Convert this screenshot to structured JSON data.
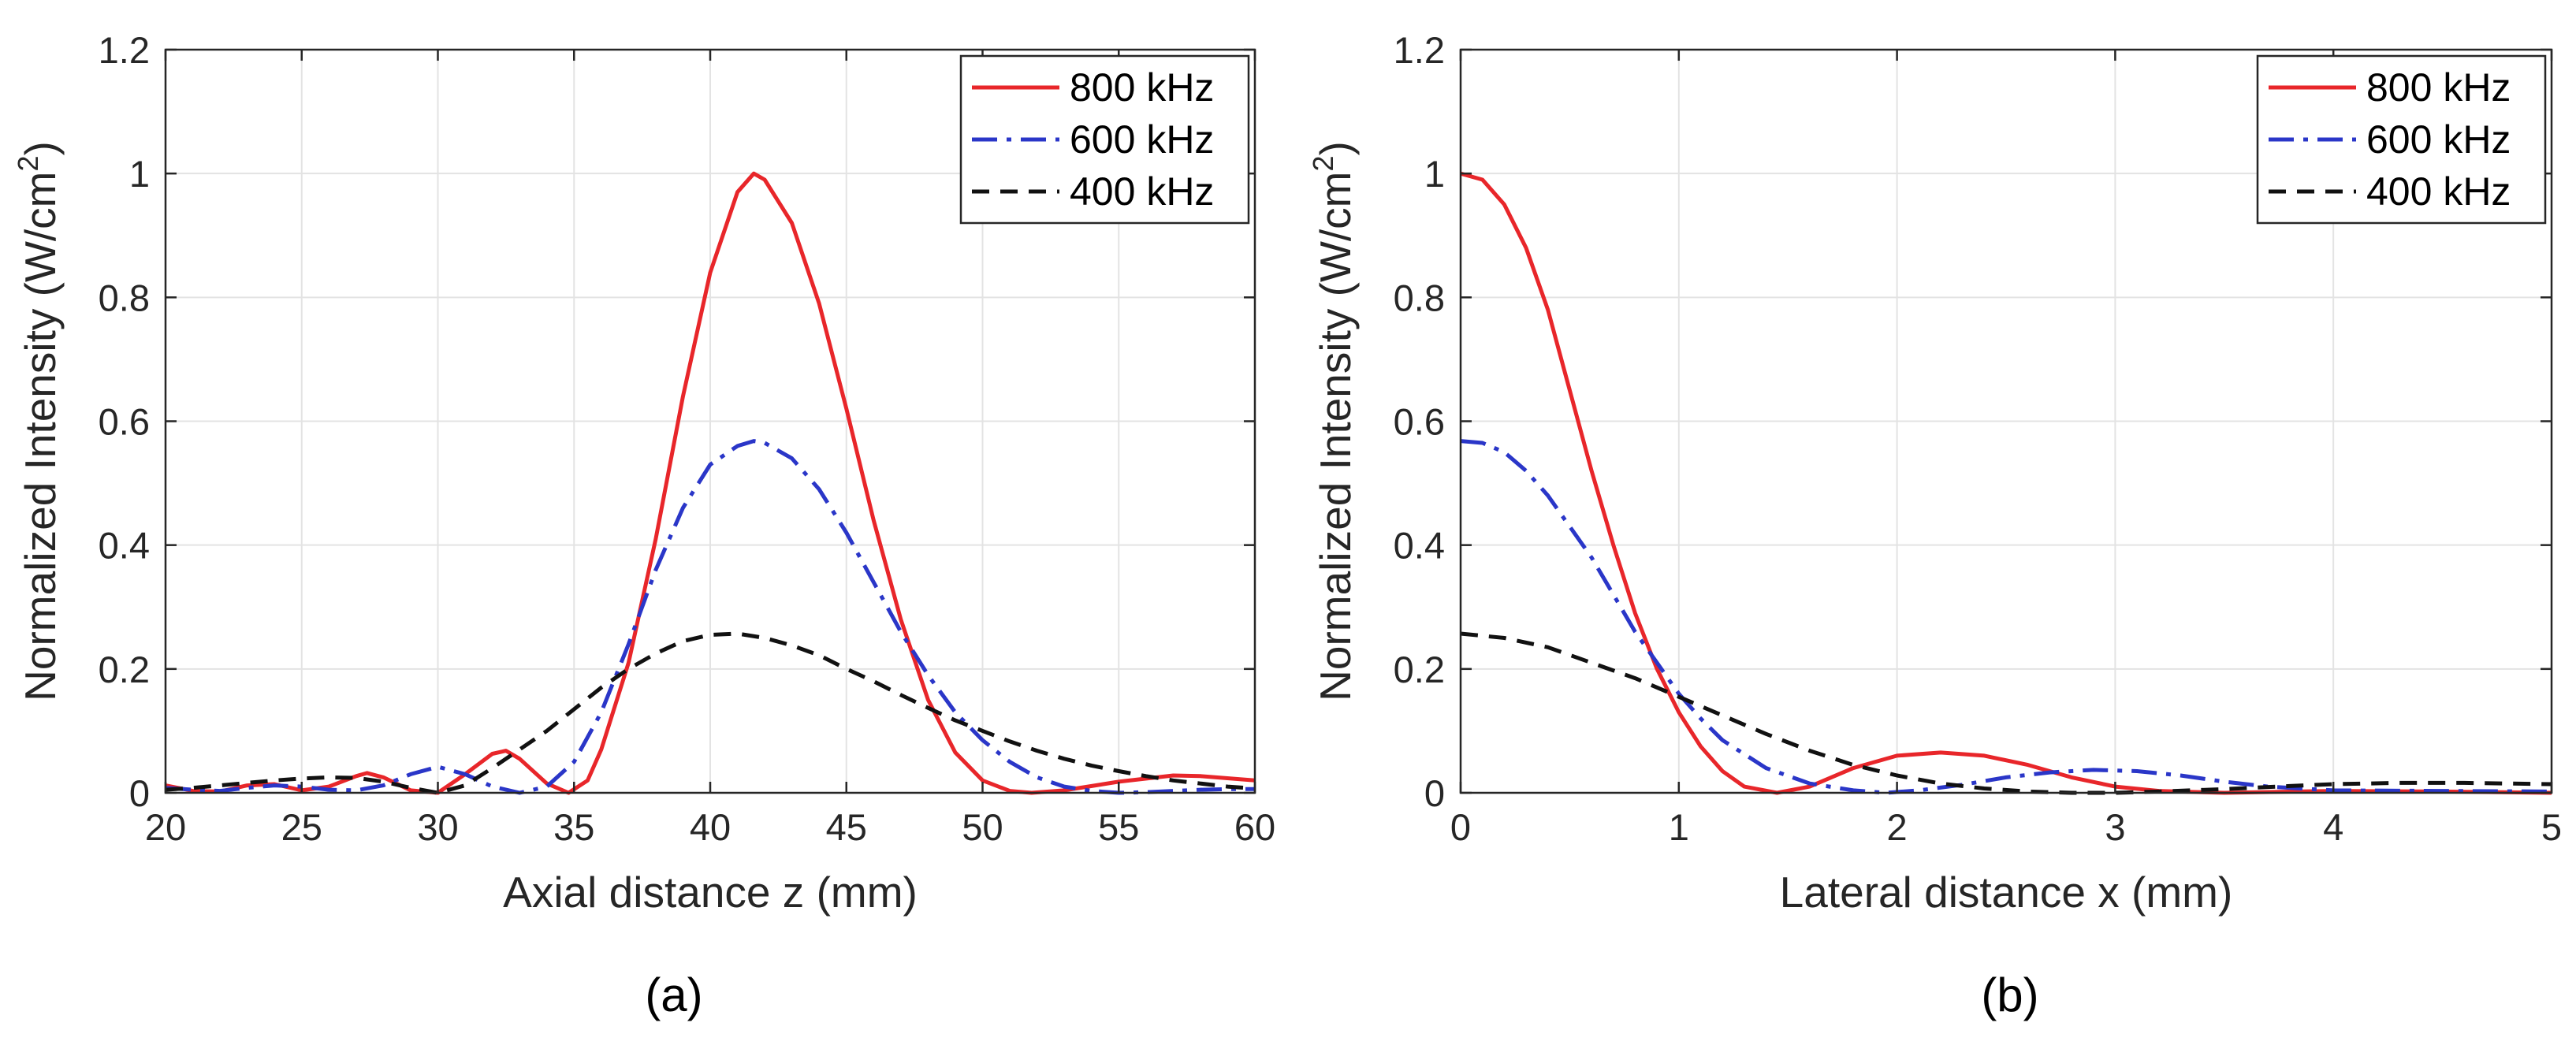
{
  "chart_data": [
    {
      "type": "line",
      "panel_label": "(a)",
      "xlabel": "Axial distance z (mm)",
      "ylabel": "Normalized Intensity (W/cm",
      "ylabel_sup": "2",
      "ylabel_close": ")",
      "xlim": [
        20,
        60
      ],
      "ylim": [
        0,
        1.2
      ],
      "xticks": [
        20,
        25,
        30,
        35,
        40,
        45,
        50,
        55,
        60
      ],
      "xticklabels": [
        "20",
        "25",
        "30",
        "35",
        "40",
        "45",
        "50",
        "55",
        "60"
      ],
      "yticks": [
        0,
        0.2,
        0.4,
        0.6,
        0.8,
        1,
        1.2
      ],
      "yticklabels": [
        "0",
        "0.2",
        "0.4",
        "0.6",
        "0.8",
        "1",
        "1.2"
      ],
      "grid": true,
      "legend_position": "top-right",
      "series": [
        {
          "name": "800 kHz",
          "color": "#e8262a",
          "dash": "solid",
          "x": [
            20,
            21,
            22,
            23,
            24,
            25,
            26,
            27,
            27.4,
            28,
            29,
            30,
            31,
            32,
            32.5,
            33,
            34,
            34.8,
            35.5,
            36,
            37,
            38,
            39,
            40,
            41,
            41.6,
            42,
            43,
            44,
            45,
            46,
            47,
            48,
            49,
            50,
            51,
            51.8,
            53,
            55,
            57,
            58,
            60
          ],
          "y": [
            0.012,
            0.003,
            0.002,
            0.012,
            0.014,
            0.004,
            0.01,
            0.027,
            0.032,
            0.025,
            0.004,
            0.0,
            0.03,
            0.063,
            0.068,
            0.055,
            0.015,
            0.0,
            0.02,
            0.07,
            0.21,
            0.41,
            0.64,
            0.84,
            0.97,
            1.0,
            0.99,
            0.92,
            0.79,
            0.62,
            0.44,
            0.28,
            0.15,
            0.065,
            0.02,
            0.003,
            0.0,
            0.004,
            0.018,
            0.028,
            0.027,
            0.02
          ]
        },
        {
          "name": "600 kHz",
          "color": "#2a36c8",
          "dash": "dashdot",
          "x": [
            20,
            21,
            22,
            23,
            24,
            25,
            26,
            27,
            28,
            29,
            30,
            31,
            32,
            33,
            34,
            35,
            36,
            37,
            38,
            39,
            40,
            41,
            41.6,
            42,
            43,
            44,
            45,
            46,
            47,
            48,
            49,
            50,
            51,
            52,
            53,
            54,
            55,
            56,
            57,
            58,
            59,
            60
          ],
          "y": [
            0.008,
            0.005,
            0.003,
            0.008,
            0.012,
            0.01,
            0.005,
            0.004,
            0.012,
            0.03,
            0.042,
            0.03,
            0.01,
            0.0,
            0.01,
            0.05,
            0.13,
            0.24,
            0.36,
            0.46,
            0.53,
            0.56,
            0.568,
            0.565,
            0.54,
            0.49,
            0.42,
            0.34,
            0.26,
            0.19,
            0.13,
            0.085,
            0.05,
            0.025,
            0.01,
            0.003,
            0.0,
            0.001,
            0.003,
            0.005,
            0.006,
            0.006
          ]
        },
        {
          "name": "400 kHz",
          "color": "#111111",
          "dash": "dashed",
          "x": [
            20,
            21,
            22,
            23,
            24,
            25,
            26,
            27,
            28,
            29,
            30,
            31,
            32,
            33,
            34,
            35,
            36,
            37,
            38,
            39,
            40,
            41,
            42,
            43,
            44,
            45,
            46,
            47,
            48,
            49,
            50,
            51,
            52,
            53,
            54,
            55,
            56,
            57,
            58,
            59,
            60
          ],
          "y": [
            0.005,
            0.008,
            0.012,
            0.016,
            0.02,
            0.023,
            0.025,
            0.024,
            0.018,
            0.008,
            0.0,
            0.012,
            0.04,
            0.07,
            0.1,
            0.135,
            0.17,
            0.2,
            0.225,
            0.245,
            0.255,
            0.257,
            0.25,
            0.238,
            0.222,
            0.2,
            0.18,
            0.158,
            0.137,
            0.117,
            0.1,
            0.083,
            0.068,
            0.055,
            0.044,
            0.035,
            0.027,
            0.02,
            0.015,
            0.01,
            0.007
          ]
        }
      ]
    },
    {
      "type": "line",
      "panel_label": "(b)",
      "xlabel": "Lateral distance x (mm)",
      "ylabel": "Normalized Intensity (W/cm",
      "ylabel_sup": "2",
      "ylabel_close": ")",
      "xlim": [
        0,
        5
      ],
      "ylim": [
        0,
        1.2
      ],
      "xticks": [
        0,
        1,
        2,
        3,
        4,
        5
      ],
      "xticklabels": [
        "0",
        "1",
        "2",
        "3",
        "4",
        "5"
      ],
      "yticks": [
        0,
        0.2,
        0.4,
        0.6,
        0.8,
        1,
        1.2
      ],
      "yticklabels": [
        "0",
        "0.2",
        "0.4",
        "0.6",
        "0.8",
        "1",
        "1.2"
      ],
      "grid": true,
      "legend_position": "top-right",
      "series": [
        {
          "name": "800 kHz",
          "color": "#e8262a",
          "dash": "solid",
          "x": [
            0,
            0.1,
            0.2,
            0.3,
            0.4,
            0.5,
            0.6,
            0.7,
            0.8,
            0.9,
            1.0,
            1.1,
            1.2,
            1.3,
            1.45,
            1.6,
            1.8,
            2.0,
            2.2,
            2.4,
            2.6,
            2.8,
            3.0,
            3.2,
            3.5,
            4.0,
            4.5,
            5.0
          ],
          "y": [
            1.0,
            0.99,
            0.95,
            0.88,
            0.78,
            0.65,
            0.52,
            0.4,
            0.29,
            0.2,
            0.13,
            0.075,
            0.035,
            0.01,
            0.0,
            0.01,
            0.04,
            0.06,
            0.065,
            0.06,
            0.045,
            0.025,
            0.01,
            0.003,
            0.0,
            0.003,
            0.002,
            0.0
          ]
        },
        {
          "name": "600 kHz",
          "color": "#2a36c8",
          "dash": "dashdot",
          "x": [
            0,
            0.1,
            0.2,
            0.3,
            0.4,
            0.5,
            0.6,
            0.7,
            0.8,
            0.9,
            1.0,
            1.1,
            1.2,
            1.4,
            1.6,
            1.8,
            1.95,
            2.1,
            2.3,
            2.5,
            2.7,
            2.9,
            3.1,
            3.3,
            3.5,
            3.7,
            4.0,
            4.5,
            5.0
          ],
          "y": [
            0.568,
            0.565,
            0.55,
            0.52,
            0.48,
            0.43,
            0.38,
            0.32,
            0.26,
            0.21,
            0.16,
            0.12,
            0.085,
            0.04,
            0.015,
            0.004,
            0.0,
            0.004,
            0.013,
            0.025,
            0.033,
            0.037,
            0.035,
            0.028,
            0.018,
            0.01,
            0.004,
            0.003,
            0.002
          ]
        },
        {
          "name": "400 kHz",
          "color": "#111111",
          "dash": "dashed",
          "x": [
            0,
            0.2,
            0.4,
            0.6,
            0.8,
            1.0,
            1.2,
            1.4,
            1.6,
            1.8,
            2.0,
            2.2,
            2.4,
            2.6,
            2.8,
            3.0,
            3.2,
            3.5,
            3.8,
            4.0,
            4.3,
            4.6,
            5.0
          ],
          "y": [
            0.257,
            0.25,
            0.235,
            0.21,
            0.185,
            0.155,
            0.125,
            0.095,
            0.068,
            0.045,
            0.028,
            0.015,
            0.007,
            0.002,
            0.0,
            0.0,
            0.002,
            0.006,
            0.011,
            0.014,
            0.016,
            0.016,
            0.014
          ]
        }
      ]
    }
  ]
}
